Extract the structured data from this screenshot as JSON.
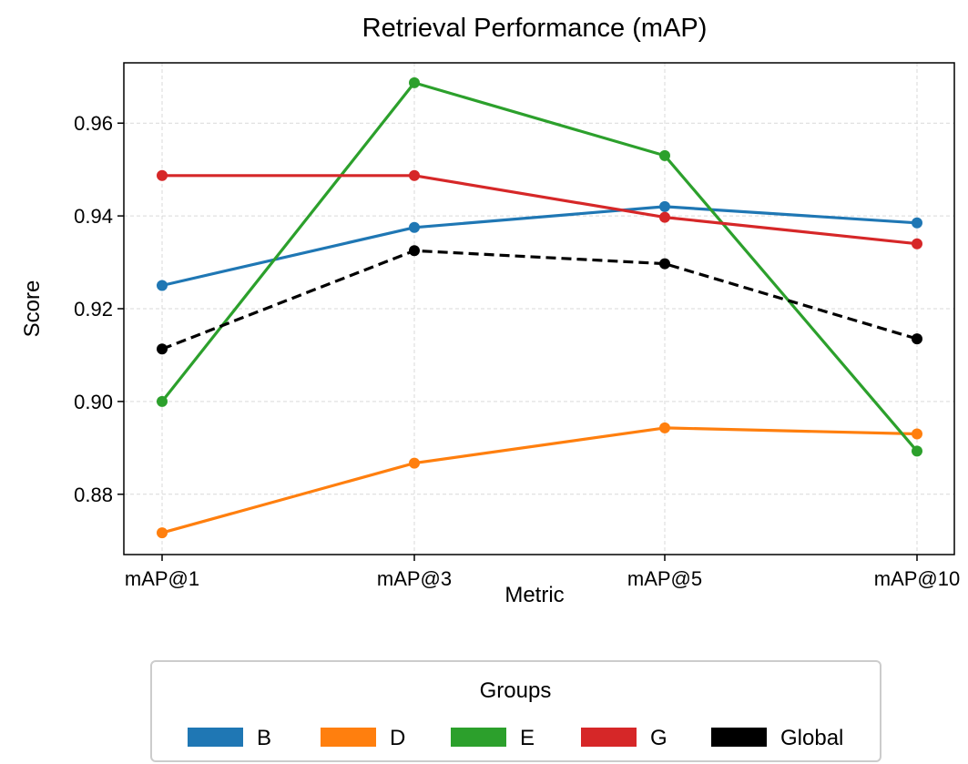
{
  "chart_data": {
    "type": "line",
    "title": "Retrieval Performance (mAP)",
    "xlabel": "Metric",
    "ylabel": "Score",
    "categories": [
      "mAP@1",
      "mAP@3",
      "mAP@5",
      "mAP@10"
    ],
    "ylim": [
      0.867,
      0.973
    ],
    "yticks": [
      0.88,
      0.9,
      0.92,
      0.94,
      0.96
    ],
    "ytick_labels": [
      "0.88",
      "0.90",
      "0.92",
      "0.94",
      "0.96"
    ],
    "grid": true,
    "legend": {
      "title": "Groups",
      "placement": "bottom"
    },
    "series": [
      {
        "name": "B",
        "color": "#1f77b4",
        "dashed": false,
        "values": [
          0.925,
          0.9375,
          0.942,
          0.9385
        ]
      },
      {
        "name": "D",
        "color": "#ff7f0e",
        "dashed": false,
        "values": [
          0.8717,
          0.8867,
          0.8943,
          0.893
        ]
      },
      {
        "name": "E",
        "color": "#2ca02c",
        "dashed": false,
        "values": [
          0.9,
          0.9687,
          0.953,
          0.8893
        ]
      },
      {
        "name": "G",
        "color": "#d62728",
        "dashed": false,
        "values": [
          0.9487,
          0.9487,
          0.9397,
          0.934
        ]
      },
      {
        "name": "Global",
        "color": "#000000",
        "dashed": true,
        "values": [
          0.9113,
          0.9325,
          0.9297,
          0.9135
        ]
      }
    ]
  }
}
